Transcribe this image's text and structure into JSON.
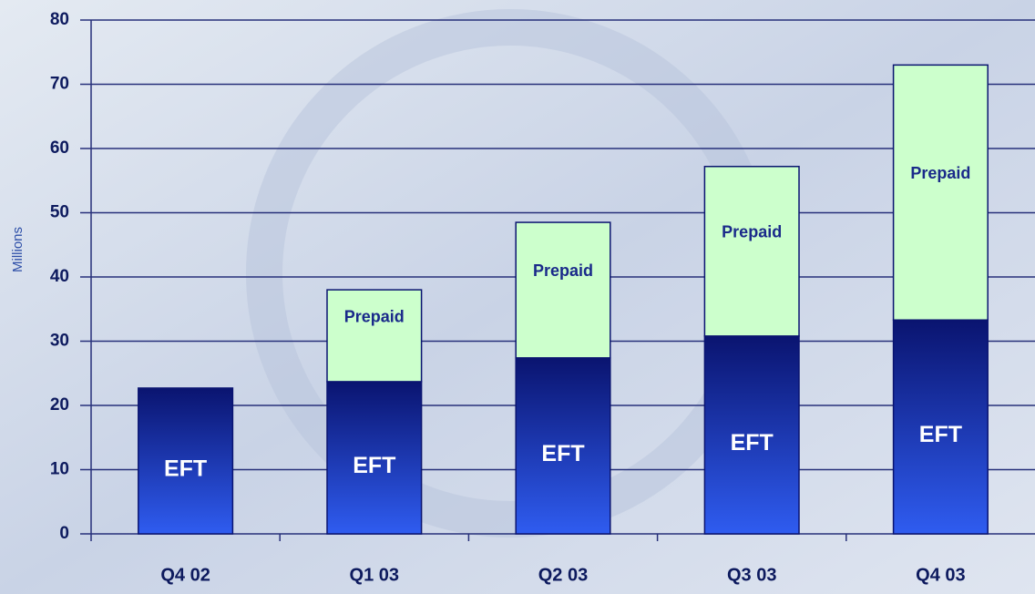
{
  "chart_data": {
    "type": "stacked-bar",
    "y_label": "Millions",
    "categories": [
      "Q4 02",
      "Q1 03",
      "Q2 03",
      "Q3 03",
      "Q4 03"
    ],
    "series": [
      {
        "name": "EFT",
        "color": "#2f5cf0",
        "values": [
          22.7,
          23.7,
          27.4,
          30.8,
          33.3
        ]
      },
      {
        "name": "Prepaid",
        "color": "#ccffcc",
        "values": [
          null,
          14.3,
          21.1,
          26.4,
          39.7
        ]
      }
    ],
    "ylim": [
      0,
      80
    ],
    "yticks": [
      0,
      10,
      20,
      30,
      40,
      50,
      60,
      70,
      80
    ],
    "grid": true
  }
}
